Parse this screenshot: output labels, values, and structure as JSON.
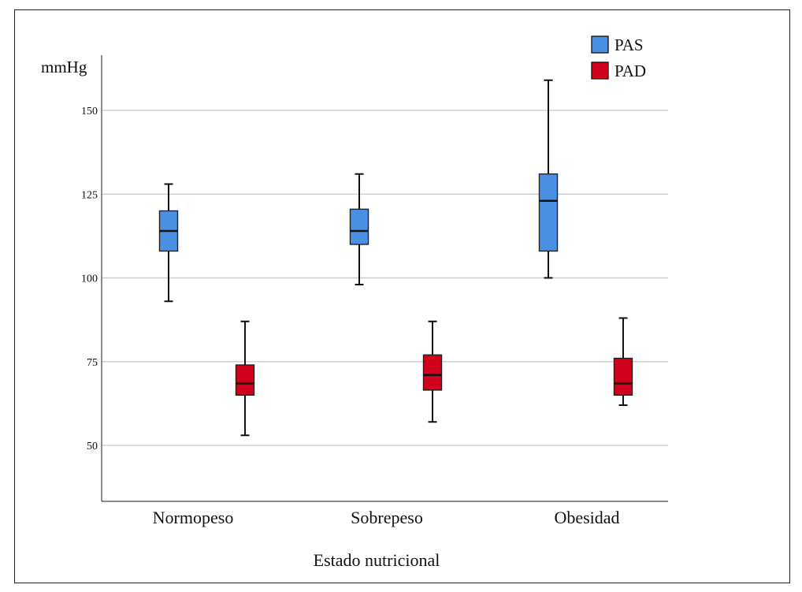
{
  "chart_data": {
    "type": "box",
    "ylabel": "mmHg",
    "xlabel": "Estado nutricional",
    "ylim": [
      38,
      168
    ],
    "yticks": [
      50,
      75,
      100,
      125,
      150
    ],
    "grid": true,
    "legend": "top-right",
    "categories": [
      "Normopeso",
      "Sobrepeso",
      "Obesidad"
    ],
    "series": [
      {
        "name": "PAS",
        "color": "#4a90e2",
        "boxes": [
          {
            "min": 93,
            "q1": 108,
            "median": 114,
            "q3": 120,
            "max": 128
          },
          {
            "min": 98,
            "q1": 110,
            "median": 114,
            "q3": 120.5,
            "max": 131
          },
          {
            "min": 100,
            "q1": 108,
            "median": 123,
            "q3": 131,
            "max": 159
          }
        ]
      },
      {
        "name": "PAD",
        "color": "#d0021b",
        "boxes": [
          {
            "min": 53,
            "q1": 65,
            "median": 68.5,
            "q3": 74,
            "max": 87
          },
          {
            "min": 57,
            "q1": 66.5,
            "median": 71,
            "q3": 77,
            "max": 87
          },
          {
            "min": 62,
            "q1": 65,
            "median": 68.5,
            "q3": 76,
            "max": 88
          }
        ]
      }
    ]
  }
}
